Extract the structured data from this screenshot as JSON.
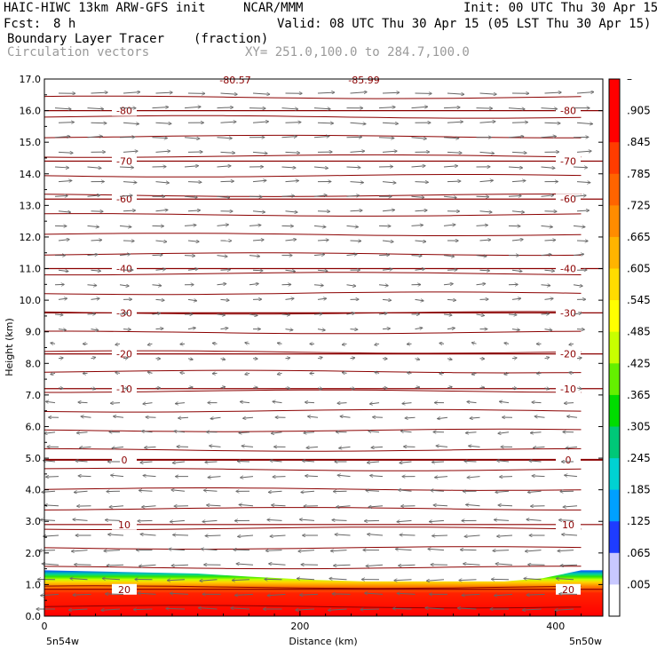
{
  "header": {
    "title": "HAIC-HIWC 13km ARW-GFS init",
    "org": "NCAR/MMM",
    "init": "Init: 00 UTC Thu 30 Apr 15",
    "fcst_label": "Fcst:",
    "fcst_value": "8 h",
    "valid": "Valid: 08 UTC Thu 30 Apr 15 (05 LST Thu 30 Apr 15)",
    "field_name": "Boundary Layer Tracer",
    "field_units": "(fraction)",
    "vectors_label": "Circulation vectors",
    "xsec_endpoints": "XY= 251.0,100.0 to 284.7,100.0"
  },
  "x_axis": {
    "title": "Distance (km)",
    "left_label": "5n54w",
    "right_label": "5n50w"
  },
  "y_axis": {
    "title": "Height (km)"
  },
  "colorbar": {
    "labels": [
      "–",
      ".905",
      ".845",
      ".785",
      ".725",
      ".665",
      ".605",
      ".545",
      ".485",
      ".425",
      ".365",
      ".305",
      ".245",
      ".185",
      ".125",
      ".065",
      ".005"
    ]
  },
  "chart_data": {
    "type": "heatmap",
    "title": "Boundary Layer Tracer (fraction)",
    "xlabel": "Distance (km)",
    "ylabel": "Height (km)",
    "xlim": [
      0,
      437
    ],
    "ylim": [
      0,
      17
    ],
    "x_ticks": [
      "0",
      "200",
      "400"
    ],
    "x_tick_values": [
      0,
      200,
      400
    ],
    "y_ticks": [
      "0.0",
      "1.0",
      "2.0",
      "3.0",
      "4.0",
      "5.0",
      "6.0",
      "7.0",
      "8.0",
      "9.0",
      "10.0",
      "11.0",
      "12.0",
      "13.0",
      "14.0",
      "15.0",
      "16.0",
      "17.0"
    ],
    "y_tick_values": [
      0,
      1,
      2,
      3,
      4,
      5,
      6,
      7,
      8,
      9,
      10,
      11,
      12,
      13,
      14,
      15,
      16,
      17
    ],
    "tracer_top_km": [
      [
        0,
        1.45
      ],
      [
        60,
        1.4
      ],
      [
        120,
        1.35
      ],
      [
        160,
        1.25
      ],
      [
        210,
        1.15
      ],
      [
        250,
        1.1
      ],
      [
        300,
        1.1
      ],
      [
        360,
        1.1
      ],
      [
        390,
        1.2
      ],
      [
        420,
        1.45
      ],
      [
        437,
        1.45
      ]
    ],
    "temperature_contours": [
      {
        "label": "-80",
        "height_km": 16.0
      },
      {
        "label": "-70",
        "height_km": 14.4
      },
      {
        "label": "-60",
        "height_km": 13.2
      },
      {
        "label": "-40",
        "height_km": 11.0
      },
      {
        "label": "-30",
        "height_km": 9.6
      },
      {
        "label": "-20",
        "height_km": 8.3
      },
      {
        "label": "-10",
        "height_km": 7.2
      },
      {
        "label": "0",
        "height_km": 4.95
      },
      {
        "label": "10",
        "height_km": 2.9
      },
      {
        "label": "20",
        "height_km": 0.85
      }
    ],
    "top_contour_labels": [
      "-80.57",
      "-85.99"
    ],
    "colorbar_colors": [
      "#ffffff",
      "#c8c8ff",
      "#1e3cff",
      "#00a0ff",
      "#00d2d2",
      "#00c878",
      "#00dc00",
      "#64f000",
      "#c8ff00",
      "#ffff00",
      "#ffdc00",
      "#ffb400",
      "#ff8c00",
      "#ff6400",
      "#ff3c00",
      "#ff0000",
      "#ff0000"
    ]
  }
}
